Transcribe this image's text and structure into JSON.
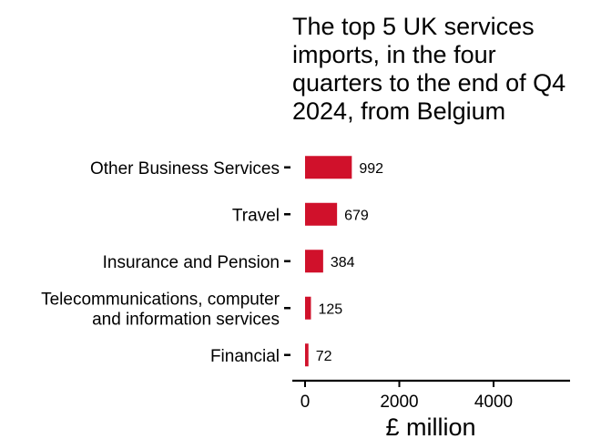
{
  "chart_data": {
    "type": "bar",
    "orientation": "horizontal",
    "title_lines": [
      "The top 5 UK services",
      "imports, in the four",
      "quarters to the end of Q4",
      "2024, from Belgium"
    ],
    "categories": [
      [
        "Other Business Services"
      ],
      [
        "Travel"
      ],
      [
        "Insurance and Pension"
      ],
      [
        "Telecommunications, computer",
        "and information services"
      ],
      [
        "Financial"
      ]
    ],
    "values": [
      992,
      679,
      384,
      125,
      72
    ],
    "value_labels": [
      "992",
      "679",
      "384",
      "125",
      "72"
    ],
    "xlabel": "£ million",
    "xlim": [
      0,
      5500
    ],
    "xticks": [
      0,
      2000,
      4000
    ],
    "xtick_labels": [
      "0",
      "2000",
      "4000"
    ],
    "bar_color": "#D0112B",
    "grid": false,
    "legend": "none"
  }
}
